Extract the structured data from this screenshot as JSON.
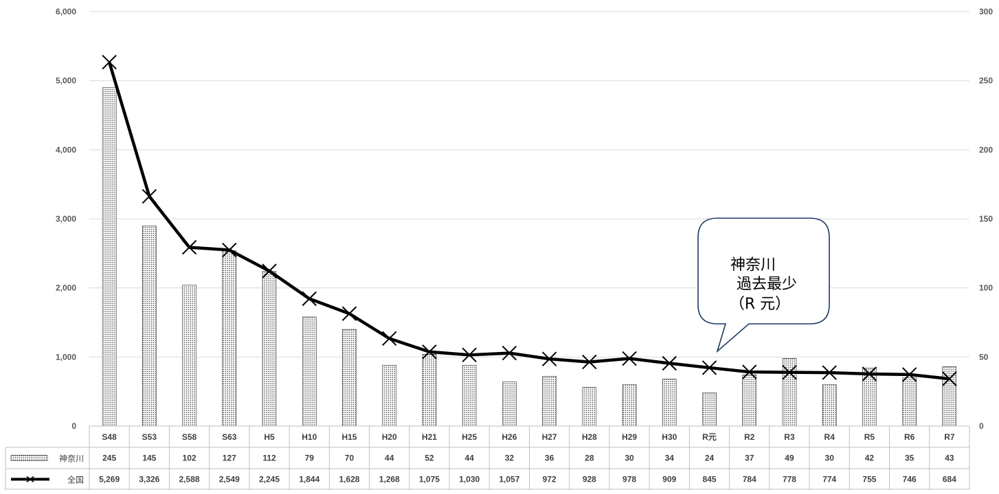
{
  "chart_data": {
    "type": "bar",
    "categories": [
      "S48",
      "S53",
      "S58",
      "S63",
      "H5",
      "H10",
      "H15",
      "H20",
      "H21",
      "H25",
      "H26",
      "H27",
      "H28",
      "H29",
      "H30",
      "R元",
      "R2",
      "R3",
      "R4",
      "R5",
      "R6",
      "R7"
    ],
    "series": [
      {
        "name": "神奈川",
        "kind": "bar",
        "axis": "right",
        "values": [
          245,
          145,
          102,
          127,
          112,
          79,
          70,
          44,
          52,
          44,
          32,
          36,
          28,
          30,
          34,
          24,
          37,
          49,
          30,
          42,
          35,
          43
        ],
        "labels": [
          "245",
          "145",
          "102",
          "127",
          "112",
          "79",
          "70",
          "44",
          "52",
          "44",
          "32",
          "36",
          "28",
          "30",
          "34",
          "24",
          "37",
          "49",
          "30",
          "42",
          "35",
          "43"
        ]
      },
      {
        "name": "全国",
        "kind": "line",
        "axis": "left",
        "values": [
          5269,
          3326,
          2588,
          2549,
          2245,
          1844,
          1628,
          1268,
          1075,
          1030,
          1057,
          972,
          928,
          978,
          909,
          845,
          784,
          778,
          774,
          755,
          746,
          684
        ],
        "labels": [
          "5,269",
          "3,326",
          "2,588",
          "2,549",
          "2,245",
          "1,844",
          "1,628",
          "1,268",
          "1,075",
          "1,030",
          "1,057",
          "972",
          "928",
          "978",
          "909",
          "845",
          "784",
          "778",
          "774",
          "755",
          "746",
          "684"
        ]
      }
    ],
    "y_left": {
      "min": 0,
      "max": 6000,
      "ticks": [
        "0",
        "1,000",
        "2,000",
        "3,000",
        "4,000",
        "5,000",
        "6,000"
      ]
    },
    "y_right": {
      "min": 0,
      "max": 300,
      "ticks": [
        "0",
        "50",
        "100",
        "150",
        "200",
        "250",
        "300"
      ]
    },
    "grid": true,
    "data_table": true,
    "callout": {
      "lines": [
        "神奈川",
        "過去最少",
        "（R 元）"
      ],
      "points_to": "R元"
    },
    "colors": {
      "line": "#000000",
      "bar_fill": "#ffffff",
      "bar_dots": "#000000",
      "grid": "#d9d9d9",
      "table_border": "#bfbfbf"
    }
  }
}
